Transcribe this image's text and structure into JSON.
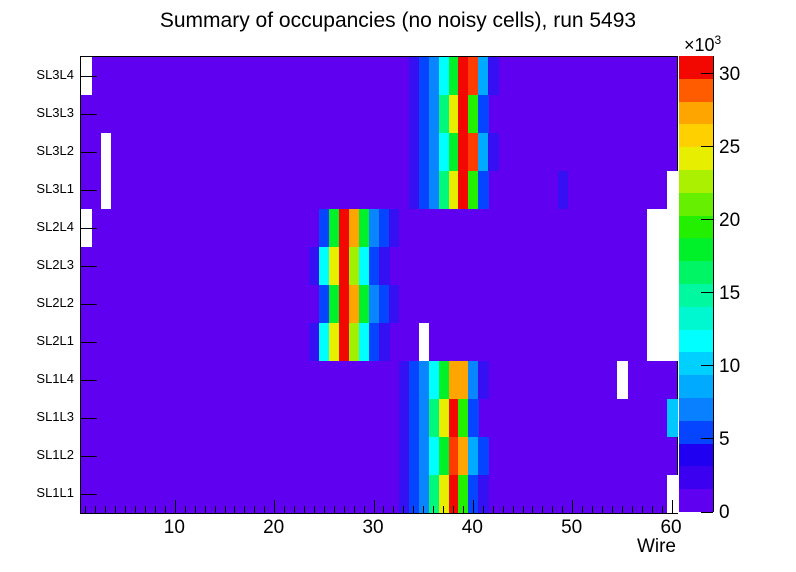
{
  "chart_data": {
    "type": "heatmap",
    "title": "Summary of occupancies (no noisy cells), run 5493",
    "xlabel": "Wire",
    "z_unit_multiplier": "×10",
    "z_unit_exponent": "3",
    "x_major_ticks": [
      10,
      20,
      30,
      40,
      50,
      60
    ],
    "x_minor_tick_step": 1,
    "n_wires": 60,
    "x_range": [
      0.5,
      60.5
    ],
    "rows_top_to_bottom": [
      "SL3L4",
      "SL3L3",
      "SL3L2",
      "SL3L1",
      "SL2L4",
      "SL2L3",
      "SL2L2",
      "SL2L1",
      "SL1L4",
      "SL1L3",
      "SL1L2",
      "SL1L1"
    ],
    "grid": false,
    "legend_position": "right-colorbar",
    "colorbar_ticks": [
      0,
      5,
      10,
      15,
      20,
      25,
      30
    ],
    "z_max": 31200,
    "background_value": 1000,
    "background_color": "#6000f0",
    "empty_color": "#ffffff",
    "palette_bottom_to_top": [
      "#6000f0",
      "#3c00f0",
      "#2000f0",
      "#0545ff",
      "#0880ff",
      "#00aaff",
      "#00d0ff",
      "#00ffff",
      "#00f8d0",
      "#00f8a0",
      "#00f564",
      "#00f02a",
      "#22f000",
      "#66f000",
      "#aaf000",
      "#e8ee00",
      "#ffd000",
      "#ffa500",
      "#ff5c00",
      "#f20800"
    ],
    "color_levels": {
      "K": {
        "hex": "#3410f2",
        "value": 2500
      },
      "B": {
        "hex": "#0545ff",
        "value": 4500
      },
      "A": {
        "hex": "#0885ff",
        "value": 7000
      },
      "A2": {
        "hex": "#00aaff",
        "value": 8000
      },
      "LC": {
        "hex": "#00c8ff",
        "value": 9000
      },
      "C": {
        "hex": "#00ffff",
        "value": 10500
      },
      "S": {
        "hex": "#00f87c",
        "value": 13500
      },
      "G": {
        "hex": "#00f02a",
        "value": 16000
      },
      "G2": {
        "hex": "#22f000",
        "value": 17000
      },
      "YG": {
        "hex": "#a0f000",
        "value": 21000
      },
      "Y": {
        "hex": "#e8ee00",
        "value": 23000
      },
      "O": {
        "hex": "#ffa500",
        "value": 26500
      },
      "RO": {
        "hex": "#ff3c00",
        "value": 29000
      },
      "R": {
        "hex": "#f20800",
        "value": 31000
      }
    },
    "hot_cells": {
      "SL3L4": [
        [
          34,
          "K"
        ],
        [
          35,
          "B"
        ],
        [
          36,
          "A"
        ],
        [
          37,
          "C"
        ],
        [
          38,
          "G"
        ],
        [
          39,
          "R"
        ],
        [
          40,
          "RO"
        ],
        [
          41,
          "A2"
        ],
        [
          42,
          "K"
        ]
      ],
      "SL3L3": [
        [
          34,
          "K"
        ],
        [
          35,
          "B"
        ],
        [
          36,
          "A"
        ],
        [
          37,
          "S"
        ],
        [
          38,
          "Y"
        ],
        [
          39,
          "R"
        ],
        [
          40,
          "G2"
        ],
        [
          41,
          "B"
        ]
      ],
      "SL3L2": [
        [
          34,
          "K"
        ],
        [
          35,
          "B"
        ],
        [
          36,
          "A"
        ],
        [
          37,
          "C"
        ],
        [
          38,
          "G"
        ],
        [
          39,
          "R"
        ],
        [
          40,
          "RO"
        ],
        [
          41,
          "A2"
        ],
        [
          42,
          "K"
        ]
      ],
      "SL3L1": [
        [
          34,
          "K"
        ],
        [
          35,
          "B"
        ],
        [
          36,
          "A"
        ],
        [
          37,
          "S"
        ],
        [
          38,
          "Y"
        ],
        [
          39,
          "R"
        ],
        [
          40,
          "G2"
        ],
        [
          41,
          "B"
        ],
        [
          49,
          "K"
        ]
      ],
      "SL2L4": [
        [
          25,
          "B"
        ],
        [
          26,
          "G"
        ],
        [
          27,
          "R"
        ],
        [
          28,
          "O"
        ],
        [
          29,
          "G"
        ],
        [
          30,
          "A"
        ],
        [
          31,
          "B"
        ],
        [
          32,
          "K"
        ]
      ],
      "SL2L3": [
        [
          24,
          "K"
        ],
        [
          25,
          "C"
        ],
        [
          26,
          "Y"
        ],
        [
          27,
          "R"
        ],
        [
          28,
          "YG"
        ],
        [
          29,
          "C"
        ],
        [
          30,
          "B"
        ],
        [
          31,
          "K"
        ]
      ],
      "SL2L2": [
        [
          25,
          "B"
        ],
        [
          26,
          "G"
        ],
        [
          27,
          "R"
        ],
        [
          28,
          "O"
        ],
        [
          29,
          "G"
        ],
        [
          30,
          "A"
        ],
        [
          31,
          "B"
        ],
        [
          32,
          "K"
        ]
      ],
      "SL2L1": [
        [
          24,
          "K"
        ],
        [
          25,
          "C"
        ],
        [
          26,
          "Y"
        ],
        [
          27,
          "R"
        ],
        [
          28,
          "YG"
        ],
        [
          29,
          "C"
        ],
        [
          30,
          "B"
        ],
        [
          31,
          "K"
        ]
      ],
      "SL1L4": [
        [
          33,
          "K"
        ],
        [
          34,
          "B"
        ],
        [
          35,
          "A"
        ],
        [
          36,
          "C"
        ],
        [
          37,
          "G"
        ],
        [
          38,
          "O"
        ],
        [
          39,
          "O"
        ],
        [
          40,
          "A"
        ],
        [
          41,
          "K"
        ]
      ],
      "SL1L3": [
        [
          33,
          "K"
        ],
        [
          34,
          "B"
        ],
        [
          35,
          "A"
        ],
        [
          36,
          "S"
        ],
        [
          37,
          "Y"
        ],
        [
          38,
          "R"
        ],
        [
          39,
          "G2"
        ],
        [
          40,
          "B"
        ],
        [
          60,
          "LC"
        ]
      ],
      "SL1L2": [
        [
          33,
          "K"
        ],
        [
          34,
          "B"
        ],
        [
          35,
          "A"
        ],
        [
          36,
          "C"
        ],
        [
          37,
          "G"
        ],
        [
          38,
          "RO"
        ],
        [
          39,
          "O"
        ],
        [
          40,
          "A2"
        ],
        [
          41,
          "B"
        ]
      ],
      "SL1L1": [
        [
          33,
          "K"
        ],
        [
          34,
          "B"
        ],
        [
          35,
          "A"
        ],
        [
          36,
          "S"
        ],
        [
          37,
          "Y"
        ],
        [
          38,
          "R"
        ],
        [
          39,
          "G2"
        ],
        [
          40,
          "B"
        ],
        [
          41,
          "K"
        ]
      ]
    },
    "empty_cells": {
      "SL3L4": [
        1
      ],
      "SL3L2": [
        3
      ],
      "SL3L1": [
        3,
        60
      ],
      "SL2L4": [
        1,
        58,
        59,
        60
      ],
      "SL2L3": [
        58,
        59,
        60
      ],
      "SL2L2": [
        58,
        59,
        60
      ],
      "SL2L1": [
        35,
        58,
        59,
        60
      ],
      "SL1L4": [
        55
      ],
      "SL1L1": [
        60
      ]
    }
  }
}
